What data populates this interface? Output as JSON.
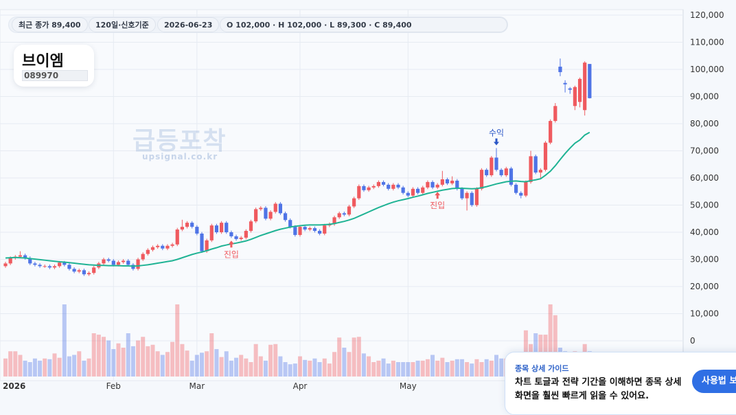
{
  "header": {
    "pills": [
      "최근 종가 89,400",
      "120일·신호기준",
      "2026-06-23",
      "O 102,000 · H 102,000 · L 89,300 · C 89,400"
    ],
    "name": "브이엠",
    "code": "089970",
    "watermark": "급등포착",
    "watermark_url": "upsignal.co.kr"
  },
  "chart_data": {
    "type": "candlestick",
    "categories": [
      "2026",
      null,
      null,
      null,
      null,
      null,
      null,
      null,
      null,
      null,
      null,
      null,
      null,
      null,
      null,
      null,
      null,
      null,
      null,
      null,
      null,
      null,
      "Feb",
      null,
      null,
      null,
      null,
      null,
      null,
      null,
      null,
      null,
      null,
      null,
      null,
      null,
      null,
      null,
      null,
      "Mar",
      null,
      null,
      null,
      null,
      null,
      null,
      null,
      null,
      null,
      null,
      null,
      null,
      null,
      null,
      null,
      null,
      null,
      null,
      null,
      null,
      "Apr",
      null,
      null,
      null,
      null,
      null,
      null,
      null,
      null,
      null,
      null,
      null,
      null,
      null,
      null,
      null,
      null,
      null,
      null,
      null,
      null,
      null,
      "May",
      null,
      null,
      null,
      null,
      null,
      null,
      null,
      null,
      null,
      null,
      null,
      null,
      null,
      null,
      null,
      null,
      null,
      null,
      null,
      null,
      null,
      null,
      null,
      null,
      null,
      null,
      null,
      null,
      null,
      null,
      null,
      null,
      null,
      null,
      null,
      null,
      null
    ],
    "candles": [
      [
        27500,
        29100,
        26900,
        28500
      ],
      [
        28500,
        31100,
        27900,
        30500
      ],
      [
        30500,
        31600,
        29900,
        31000
      ],
      [
        31000,
        33000,
        30400,
        31500
      ],
      [
        31500,
        32100,
        29900,
        30500
      ],
      [
        30500,
        31100,
        27900,
        28500
      ],
      [
        28500,
        29100,
        27400,
        28000
      ],
      [
        28000,
        28600,
        26900,
        27500
      ],
      [
        27500,
        28100,
        26900,
        27500
      ],
      [
        27500,
        28100,
        26400,
        27000
      ],
      [
        27000,
        28100,
        26400,
        27500
      ],
      [
        27500,
        29400,
        26900,
        28800
      ],
      [
        28800,
        29400,
        27400,
        28000
      ],
      [
        28000,
        28600,
        25900,
        26500
      ],
      [
        26500,
        27100,
        24900,
        25500
      ],
      [
        25500,
        26600,
        24900,
        26000
      ],
      [
        26000,
        26600,
        23900,
        24500
      ],
      [
        24500,
        25600,
        23900,
        25000
      ],
      [
        25000,
        27600,
        24400,
        27000
      ],
      [
        27000,
        29100,
        26400,
        28500
      ],
      [
        28500,
        30600,
        27900,
        30000
      ],
      [
        30000,
        30600,
        28900,
        29500
      ],
      [
        29500,
        30100,
        27400,
        28000
      ],
      [
        28000,
        29600,
        27400,
        29000
      ],
      [
        29000,
        30100,
        28400,
        29500
      ],
      [
        29500,
        30100,
        27400,
        28000
      ],
      [
        28000,
        28600,
        25900,
        26500
      ],
      [
        26500,
        30600,
        25900,
        30000
      ],
      [
        30000,
        32600,
        29400,
        32000
      ],
      [
        32000,
        34100,
        31400,
        33500
      ],
      [
        33500,
        35100,
        32900,
        34500
      ],
      [
        34500,
        35600,
        33900,
        35000
      ],
      [
        35000,
        35600,
        33400,
        34000
      ],
      [
        34000,
        35600,
        33400,
        35000
      ],
      [
        35000,
        36100,
        34400,
        35500
      ],
      [
        35500,
        41600,
        34900,
        41000
      ],
      [
        41000,
        44600,
        40400,
        42000
      ],
      [
        42000,
        44100,
        41400,
        43500
      ],
      [
        43500,
        44100,
        41400,
        42000
      ],
      [
        42000,
        42600,
        38900,
        39500
      ],
      [
        39500,
        40100,
        32400,
        33000
      ],
      [
        33000,
        37600,
        32400,
        37000
      ],
      [
        37000,
        43100,
        36400,
        42500
      ],
      [
        42500,
        43100,
        39400,
        40000
      ],
      [
        40000,
        44100,
        39400,
        43500
      ],
      [
        43500,
        44100,
        39400,
        40000
      ],
      [
        40000,
        40600,
        37900,
        38500
      ],
      [
        38500,
        39100,
        36900,
        37500
      ],
      [
        37500,
        38600,
        36900,
        38000
      ],
      [
        38000,
        41100,
        37400,
        40500
      ],
      [
        40500,
        44600,
        39900,
        44000
      ],
      [
        44000,
        49100,
        43400,
        48500
      ],
      [
        48500,
        49600,
        47900,
        49000
      ],
      [
        49000,
        49600,
        44400,
        45000
      ],
      [
        45000,
        48100,
        44400,
        47500
      ],
      [
        47500,
        51100,
        46900,
        50500
      ],
      [
        50500,
        51100,
        46400,
        47000
      ],
      [
        47000,
        47600,
        43900,
        44500
      ],
      [
        44500,
        45100,
        41400,
        42000
      ],
      [
        42000,
        42600,
        38400,
        39000
      ],
      [
        39000,
        42600,
        38400,
        42000
      ],
      [
        42000,
        42600,
        40400,
        41000
      ],
      [
        41000,
        42100,
        40400,
        41500
      ],
      [
        41500,
        42100,
        39900,
        40500
      ],
      [
        40500,
        41100,
        38900,
        39500
      ],
      [
        39500,
        43100,
        38900,
        42500
      ],
      [
        42500,
        43600,
        41900,
        43000
      ],
      [
        43000,
        46100,
        42400,
        45500
      ],
      [
        45500,
        47600,
        44900,
        47000
      ],
      [
        47000,
        47600,
        45900,
        46500
      ],
      [
        46500,
        50100,
        45900,
        49500
      ],
      [
        49500,
        53100,
        48900,
        52500
      ],
      [
        52500,
        57600,
        51900,
        57000
      ],
      [
        57000,
        57600,
        54900,
        55500
      ],
      [
        55500,
        57100,
        54900,
        56500
      ],
      [
        56500,
        57600,
        55900,
        57000
      ],
      [
        57000,
        59100,
        56400,
        58500
      ],
      [
        58500,
        59100,
        56900,
        57500
      ],
      [
        57500,
        58100,
        55400,
        56000
      ],
      [
        56000,
        58100,
        55400,
        57500
      ],
      [
        57500,
        58100,
        55900,
        56500
      ],
      [
        56500,
        57100,
        53900,
        54500
      ],
      [
        54500,
        55100,
        52900,
        53500
      ],
      [
        53500,
        56600,
        52900,
        56000
      ],
      [
        56000,
        56600,
        53900,
        54500
      ],
      [
        54500,
        57100,
        53900,
        56500
      ],
      [
        56500,
        59100,
        55900,
        58500
      ],
      [
        58500,
        59100,
        55900,
        56500
      ],
      [
        56500,
        58100,
        55900,
        57500
      ],
      [
        57500,
        62600,
        56900,
        59500
      ],
      [
        59500,
        60100,
        57400,
        58000
      ],
      [
        58000,
        60600,
        57400,
        59000
      ],
      [
        59000,
        59600,
        55400,
        56000
      ],
      [
        56000,
        56600,
        51900,
        52500
      ],
      [
        52500,
        55100,
        48000,
        54500
      ],
      [
        54500,
        55100,
        49400,
        50000
      ],
      [
        50000,
        56600,
        49400,
        56000
      ],
      [
        56000,
        63600,
        55400,
        63000
      ],
      [
        63000,
        63600,
        60400,
        61000
      ],
      [
        61000,
        68100,
        60400,
        67500
      ],
      [
        67500,
        71000,
        62400,
        63000
      ],
      [
        63000,
        63600,
        60400,
        61000
      ],
      [
        61000,
        64100,
        60400,
        63500
      ],
      [
        63500,
        64100,
        56900,
        57500
      ],
      [
        57500,
        58100,
        53900,
        54500
      ],
      [
        54500,
        55100,
        52500,
        53500
      ],
      [
        53500,
        59100,
        52900,
        58500
      ],
      [
        58500,
        70000,
        57900,
        68000
      ],
      [
        68000,
        68600,
        61400,
        62000
      ],
      [
        62000,
        63600,
        60000,
        63000
      ],
      [
        63000,
        73600,
        62400,
        73000
      ],
      [
        73000,
        81600,
        72400,
        81000
      ],
      [
        81000,
        87600,
        80400,
        86500
      ],
      [
        101000,
        104000,
        97500,
        99000
      ],
      [
        95000,
        96000,
        91500,
        94500
      ],
      [
        93000,
        93500,
        91000,
        92500
      ],
      [
        86500,
        94000,
        85000,
        93500
      ],
      [
        88000,
        97000,
        86000,
        96500
      ],
      [
        85000,
        103000,
        83000,
        102500
      ],
      [
        102000,
        102000,
        89300,
        89400
      ]
    ],
    "volume": [
      25,
      35,
      35,
      30,
      22,
      20,
      25,
      22,
      25,
      24,
      32,
      26,
      100,
      28,
      30,
      35,
      22,
      25,
      60,
      58,
      55,
      50,
      38,
      46,
      40,
      60,
      42,
      50,
      55,
      42,
      44,
      35,
      30,
      34,
      48,
      100,
      45,
      36,
      22,
      30,
      33,
      35,
      60,
      38,
      27,
      35,
      22,
      26,
      30,
      25,
      20,
      45,
      28,
      22,
      44,
      45,
      28,
      20,
      17,
      18,
      28,
      23,
      22,
      25,
      20,
      25,
      18,
      34,
      54,
      40,
      34,
      54,
      55,
      32,
      28,
      20,
      22,
      25,
      18,
      22,
      20,
      20,
      20,
      20,
      22,
      22,
      24,
      30,
      22,
      26,
      20,
      22,
      24,
      24,
      20,
      18,
      24,
      20,
      24,
      22,
      30,
      25,
      25,
      22,
      20,
      20,
      64,
      45,
      60,
      58,
      58,
      100,
      85,
      40,
      35,
      30,
      35,
      32,
      45,
      35
    ],
    "ma": {
      "color": "#1fb394",
      "values": [
        30500,
        30600,
        30700,
        30600,
        30500,
        30300,
        30100,
        29900,
        29700,
        29500,
        29300,
        29100,
        29000,
        28800,
        28600,
        28400,
        28200,
        28000,
        27900,
        27800,
        27800,
        27700,
        27700,
        27700,
        27600,
        27600,
        27500,
        27600,
        27800,
        28000,
        28300,
        28600,
        28900,
        29200,
        29500,
        30000,
        30600,
        31200,
        31800,
        32300,
        32700,
        33200,
        33800,
        34300,
        34900,
        35300,
        35700,
        36000,
        36400,
        36800,
        37400,
        38100,
        38800,
        39400,
        40000,
        40600,
        41100,
        41500,
        41900,
        42200,
        42400,
        42600,
        42700,
        42700,
        42700,
        42800,
        42900,
        43200,
        43600,
        44000,
        44500,
        45100,
        45900,
        46700,
        47500,
        48300,
        49100,
        49800,
        50500,
        51100,
        51600,
        52000,
        52400,
        52900,
        53300,
        53800,
        54300,
        54700,
        55100,
        55500,
        55800,
        56100,
        56200,
        56200,
        56100,
        56000,
        56100,
        56400,
        56800,
        57300,
        57800,
        58200,
        58600,
        58800,
        58900,
        58700,
        58600,
        59000,
        59300,
        59700,
        61000,
        62500,
        64500,
        66800,
        69000,
        71000,
        72800,
        74000,
        75800,
        76800
      ]
    },
    "signals": [
      null,
      null,
      null,
      null,
      null,
      null,
      null,
      null,
      null,
      null,
      null,
      null,
      null,
      null,
      null,
      null,
      null,
      null,
      null,
      null,
      null,
      null,
      null,
      null,
      null,
      null,
      null,
      null,
      null,
      null,
      null,
      null,
      null,
      null,
      null,
      null,
      null,
      null,
      null,
      null,
      null,
      null,
      null,
      null,
      null,
      null,
      {
        "label": "진입",
        "side": "buy"
      },
      null,
      null,
      null,
      null,
      null,
      null,
      null,
      null,
      null,
      null,
      null,
      null,
      null,
      null,
      null,
      null,
      null,
      null,
      null,
      null,
      null,
      null,
      null,
      null,
      null,
      null,
      null,
      null,
      null,
      null,
      null,
      null,
      null,
      null,
      null,
      null,
      null,
      null,
      null,
      null,
      null,
      {
        "label": "진입",
        "side": "buy"
      },
      null,
      null,
      null,
      null,
      null,
      null,
      null,
      null,
      null,
      null,
      null,
      {
        "label": "수익",
        "side": "sell"
      },
      null,
      null,
      null,
      null,
      null,
      null,
      null,
      null,
      null,
      null,
      null,
      null,
      null,
      null,
      null,
      null,
      null,
      null,
      null
    ],
    "ylim": [
      0,
      120000
    ],
    "yticks": [
      {
        "value": 0,
        "label": "0"
      },
      {
        "value": 10000,
        "label": "10,000"
      },
      {
        "value": 20000,
        "label": "20,000"
      },
      {
        "value": 30000,
        "label": "30,000"
      },
      {
        "value": 40000,
        "label": "40,000"
      },
      {
        "value": 50000,
        "label": "50,000"
      },
      {
        "value": 60000,
        "label": "60,000"
      },
      {
        "value": 70000,
        "label": "70,000"
      },
      {
        "value": 80000,
        "label": "80,000"
      },
      {
        "value": 90000,
        "label": "90,000"
      },
      {
        "value": 100000,
        "label": "100,000"
      },
      {
        "value": 110000,
        "label": "110,000"
      },
      {
        "value": 120000,
        "label": "120,000"
      }
    ],
    "up_color": "#ef5a5f",
    "down_color": "#4f74e6",
    "grid": true
  },
  "guide": {
    "title": "종목 상세 가이드",
    "lines": [
      "차트 토글과 전략 기간을 이해하면 종목 상세",
      "화면을 훨씬 빠르게 읽을 수 있어요."
    ],
    "button": "사용법 보기"
  }
}
